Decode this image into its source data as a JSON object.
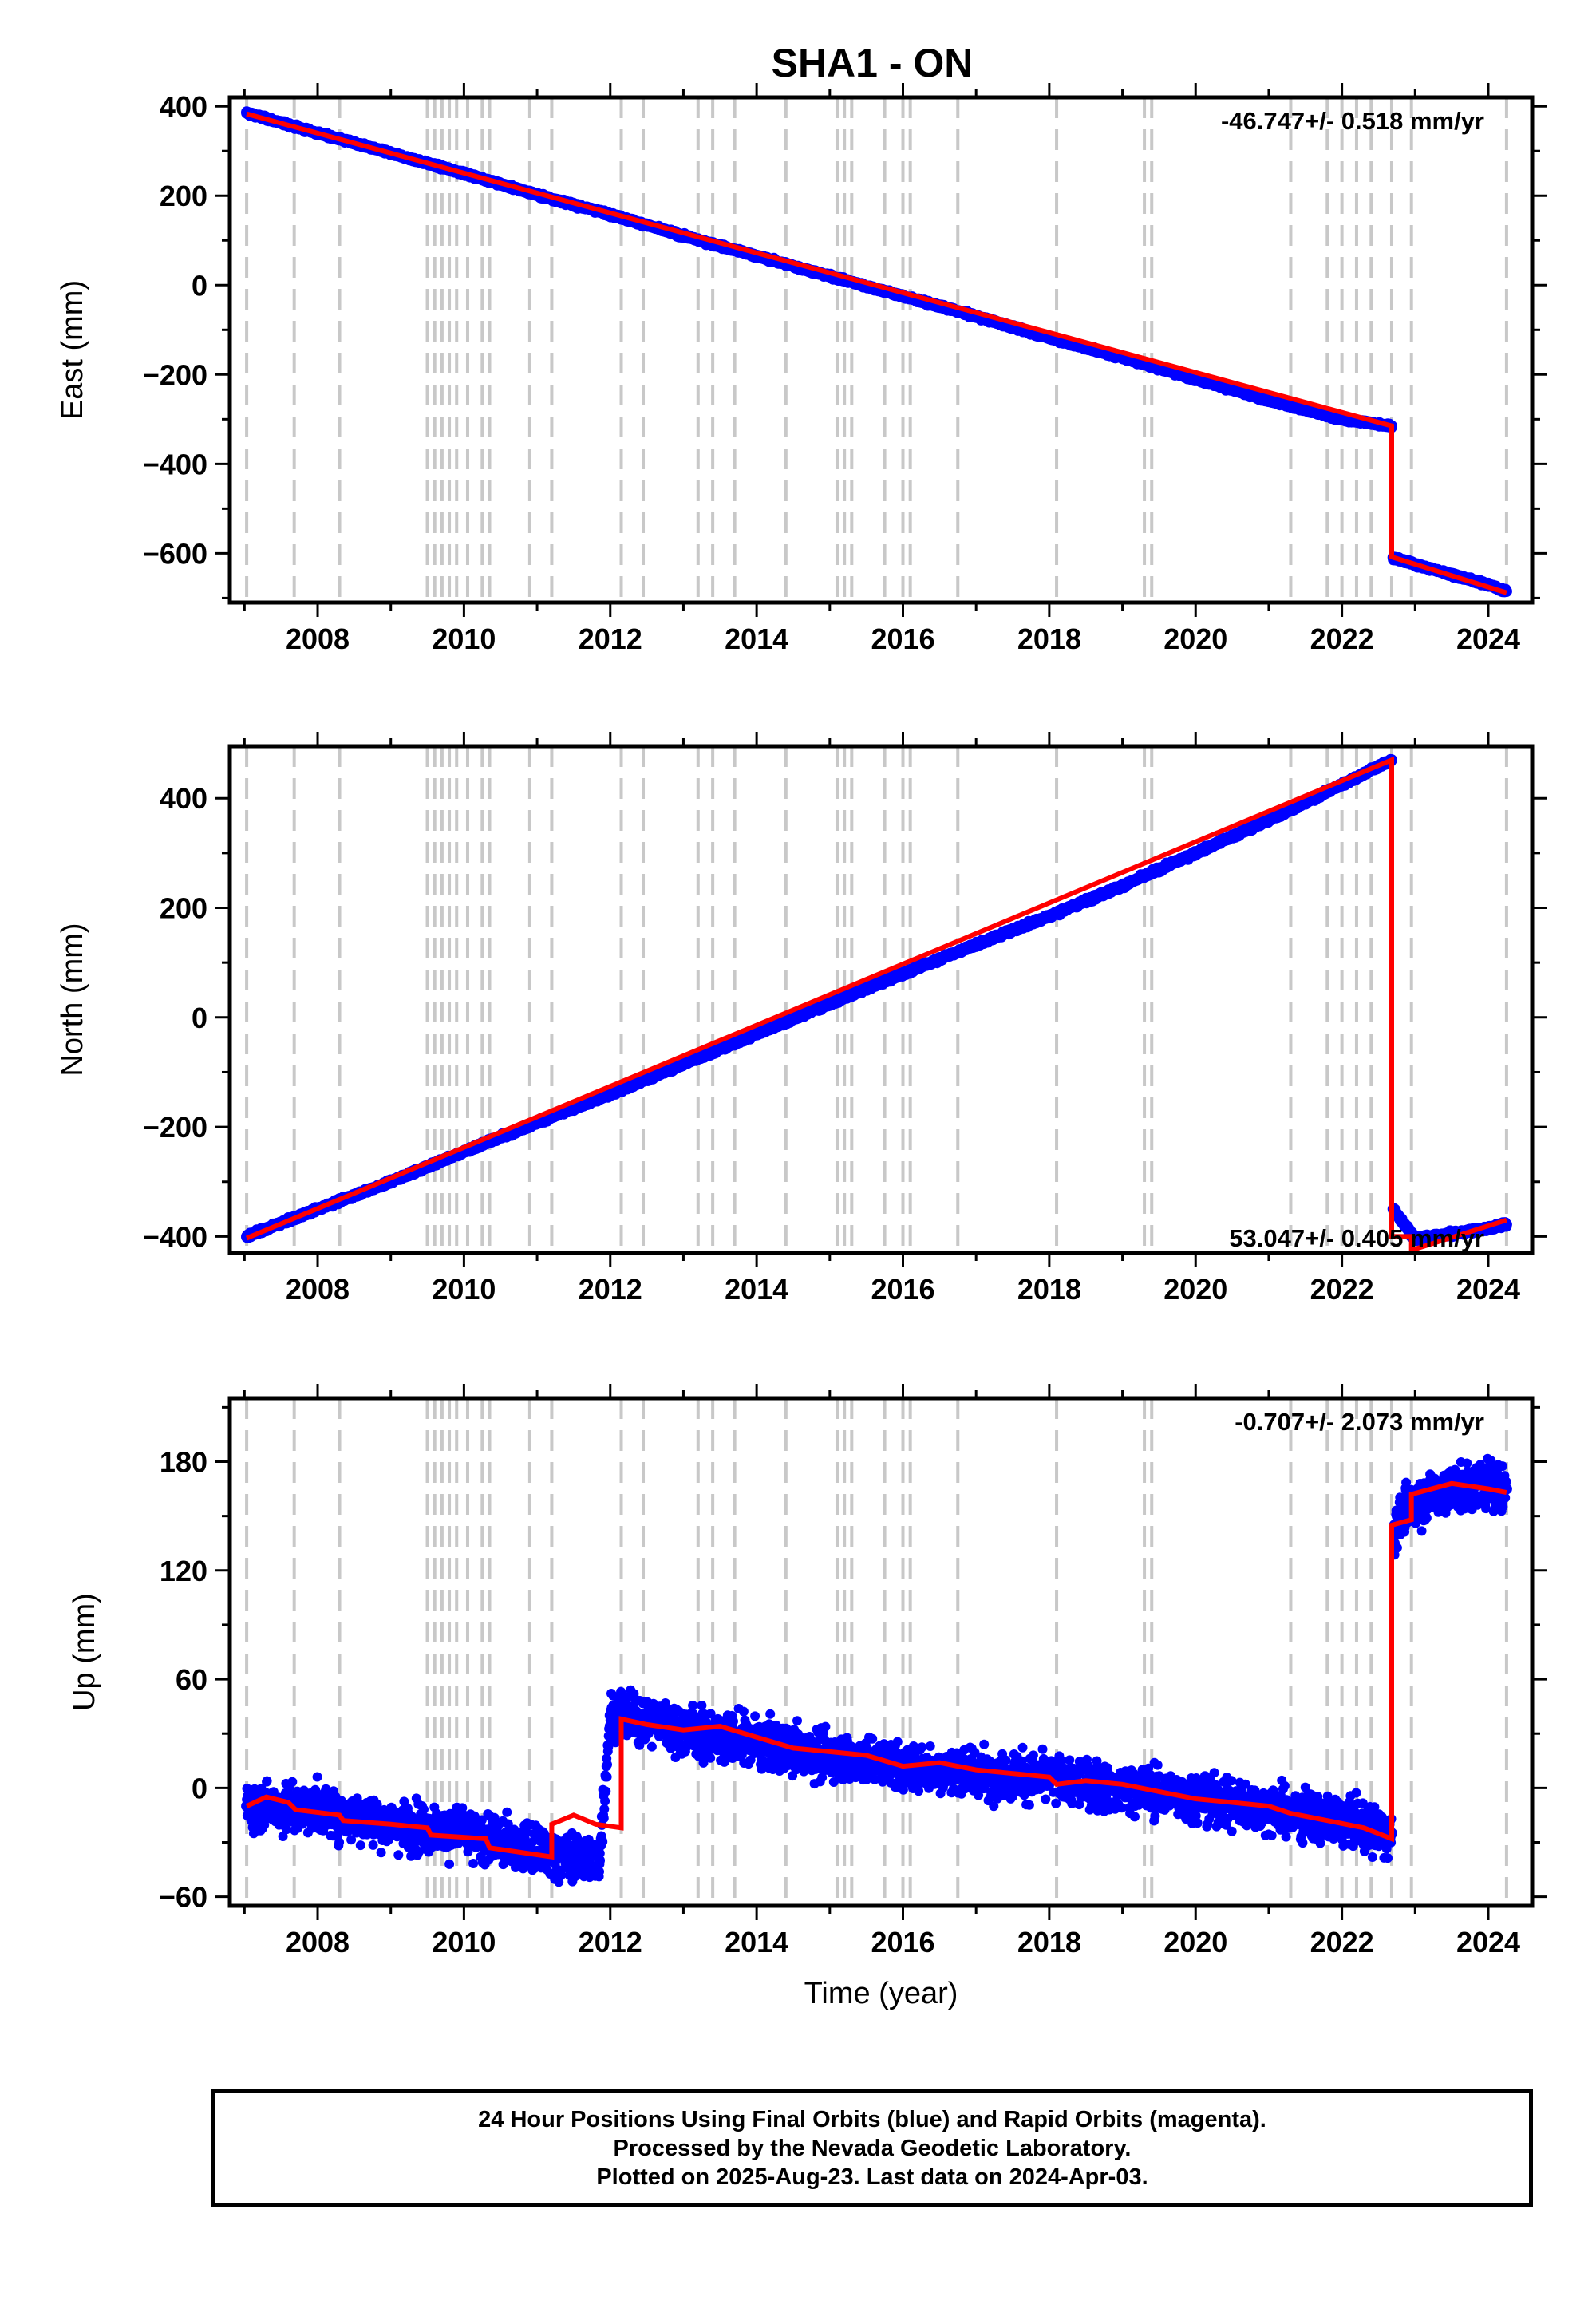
{
  "title": "SHA1 - ON",
  "colors": {
    "data": "#0000ff",
    "model": "#ff0000",
    "steps": "#c8c8c8",
    "axis": "#000000"
  },
  "footer": {
    "line1": "24 Hour Positions Using Final Orbits (blue) and Rapid Orbits (magenta).",
    "line2": "Processed by the Nevada Geodetic Laboratory.",
    "line3": "Plotted on 2025-Aug-23. Last data on 2024-Apr-03."
  },
  "chart_data": [
    {
      "type": "scatter",
      "panel": "east",
      "ylabel": "East (mm)",
      "xlabel": "",
      "rate_label": "-46.747+/- 0.518 mm/yr",
      "rate_position": "top-right",
      "xlim": [
        2006.8,
        2024.6
      ],
      "ylim": [
        -710,
        420
      ],
      "xticks": [
        2008,
        2010,
        2012,
        2014,
        2016,
        2018,
        2020,
        2022,
        2024
      ],
      "yticks": [
        400,
        200,
        0,
        -200,
        -400,
        -600
      ],
      "ytick_labels": [
        "400",
        "200",
        "0",
        "−200",
        "−400",
        "−600"
      ],
      "grid": false,
      "series": [
        {
          "name": "",
          "kind": "points",
          "color": "#0000ff",
          "x": [
            2007.03,
            2008,
            2009,
            2010,
            2011,
            2012,
            2013,
            2014,
            2015,
            2016,
            2017,
            2018,
            2019,
            2020,
            2021,
            2022,
            2022.68,
            2022.7,
            2023,
            2024,
            2024.25
          ],
          "y": [
            385,
            340,
            295,
            250,
            202,
            158,
            110,
            65,
            20,
            -25,
            -70,
            -118,
            -162,
            -210,
            -258,
            -300,
            -315,
            -610,
            -625,
            -670,
            -685
          ]
        },
        {
          "name": "",
          "kind": "model",
          "color": "#ff0000",
          "x": [
            2007.03,
            2022.68,
            2022.68,
            2024.25
          ],
          "y": [
            383,
            -315,
            -608,
            -688
          ]
        }
      ]
    },
    {
      "type": "scatter",
      "panel": "north",
      "ylabel": "North (mm)",
      "xlabel": "",
      "rate_label": "53.047+/- 0.405 mm/yr",
      "rate_position": "bottom-right",
      "xlim": [
        2006.8,
        2024.6
      ],
      "ylim": [
        -430,
        495
      ],
      "xticks": [
        2008,
        2010,
        2012,
        2014,
        2016,
        2018,
        2020,
        2022,
        2024
      ],
      "yticks": [
        400,
        200,
        0,
        -200,
        -400
      ],
      "ytick_labels": [
        "400",
        "200",
        "0",
        "−200",
        "−400"
      ],
      "grid": false,
      "series": [
        {
          "name": "",
          "kind": "points",
          "color": "#0000ff",
          "x": [
            2007.03,
            2008,
            2009,
            2010,
            2011,
            2012,
            2013,
            2014,
            2015,
            2016,
            2017,
            2018,
            2019,
            2020,
            2021,
            2022,
            2022.68,
            2022.7,
            2023,
            2024,
            2024.25
          ],
          "y": [
            -400,
            -350,
            -300,
            -245,
            -192,
            -140,
            -85,
            -30,
            25,
            80,
            133,
            185,
            240,
            300,
            360,
            425,
            470,
            -350,
            -405,
            -385,
            -378
          ]
        },
        {
          "name": "",
          "kind": "model",
          "color": "#ff0000",
          "x": [
            2007.03,
            2022.68,
            2022.68,
            2022.95,
            2022.95,
            2024.25
          ],
          "y": [
            -403,
            470,
            -400,
            -400,
            -425,
            -370
          ]
        }
      ]
    },
    {
      "type": "scatter",
      "panel": "up",
      "ylabel": "Up (mm)",
      "xlabel": "Time (year)",
      "rate_label": "-0.707+/- 2.073 mm/yr",
      "rate_position": "top-right",
      "xlim": [
        2006.8,
        2024.6
      ],
      "ylim": [
        -65,
        215
      ],
      "xticks": [
        2008,
        2010,
        2012,
        2014,
        2016,
        2018,
        2020,
        2022,
        2024
      ],
      "yticks": [
        180,
        120,
        60,
        0,
        -60
      ],
      "ytick_labels": [
        "180",
        "120",
        "60",
        "0",
        "−60"
      ],
      "grid": false,
      "series": [
        {
          "name": "",
          "kind": "points",
          "color": "#0000ff",
          "x": [
            2007.03,
            2008,
            2009,
            2010,
            2011,
            2011.85,
            2012,
            2012.5,
            2013,
            2014,
            2015,
            2016,
            2017,
            2018,
            2019,
            2020,
            2021,
            2022,
            2022.68,
            2022.72,
            2023,
            2023.5,
            2024,
            2024.25
          ],
          "y": [
            -10,
            -12,
            -20,
            -25,
            -35,
            -40,
            40,
            38,
            32,
            25,
            18,
            12,
            8,
            5,
            0,
            -5,
            -12,
            -18,
            -25,
            145,
            158,
            165,
            168,
            165
          ]
        },
        {
          "name": "",
          "kind": "model",
          "color": "#ff0000",
          "x": [
            2007.03,
            2007.3,
            2007.6,
            2007.7,
            2008.3,
            2008.35,
            2009.0,
            2009.5,
            2009.55,
            2010.3,
            2010.35,
            2011.2,
            2011.2,
            2011.5,
            2011.8,
            2012.15,
            2012.15,
            2012.5,
            2013.0,
            2013.5,
            2014.0,
            2014.5,
            2015.0,
            2015.5,
            2016.0,
            2016.5,
            2017.0,
            2017.5,
            2018.0,
            2018.1,
            2018.5,
            2019.0,
            2019.5,
            2020.0,
            2020.5,
            2021.0,
            2021.3,
            2021.8,
            2022.3,
            2022.68,
            2022.68,
            2022.95,
            2022.95,
            2023.5,
            2024.0,
            2024.25
          ],
          "y": [
            -10,
            -5,
            -8,
            -12,
            -15,
            -18,
            -20,
            -22,
            -26,
            -28,
            -33,
            -38,
            -20,
            -15,
            -20,
            -22,
            38,
            35,
            32,
            34,
            28,
            22,
            20,
            18,
            12,
            14,
            10,
            8,
            6,
            2,
            4,
            2,
            -2,
            -6,
            -8,
            -10,
            -14,
            -18,
            -22,
            -28,
            145,
            148,
            162,
            168,
            165,
            163
          ]
        }
      ]
    }
  ],
  "step_epochs": [
    2007.03,
    2007.68,
    2008.3,
    2009.5,
    2009.6,
    2009.7,
    2009.8,
    2009.9,
    2010.05,
    2010.25,
    2010.35,
    2010.9,
    2011.2,
    2012.15,
    2012.45,
    2013.2,
    2013.4,
    2013.7,
    2014.4,
    2015.1,
    2015.2,
    2015.3,
    2015.75,
    2016.0,
    2016.1,
    2016.75,
    2018.1,
    2019.3,
    2019.4,
    2021.3,
    2021.8,
    2022.0,
    2022.2,
    2022.4,
    2022.68,
    2022.95,
    2024.25
  ]
}
